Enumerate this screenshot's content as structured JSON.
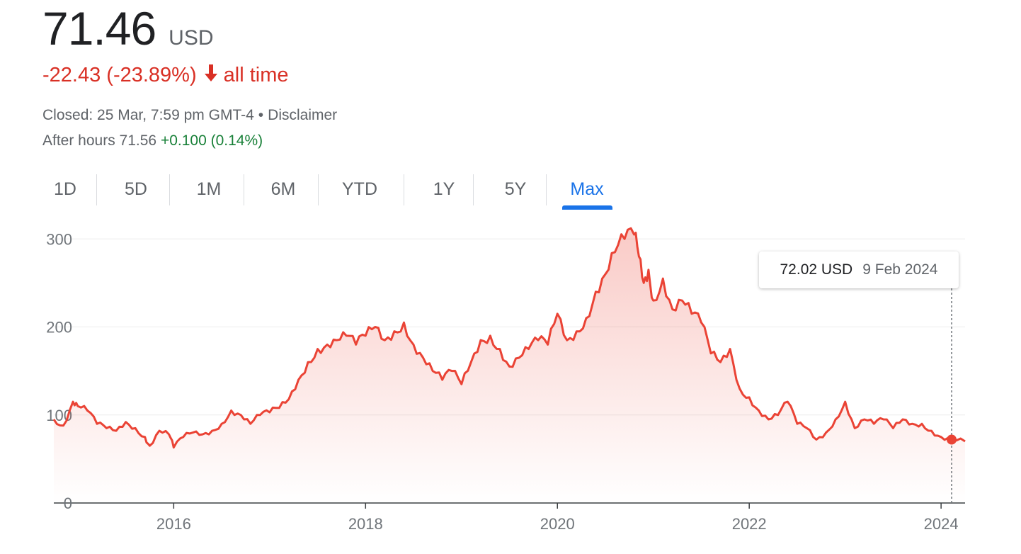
{
  "quote": {
    "price": "71.46",
    "currency": "USD",
    "change": "-22.43 (-23.89%)",
    "change_period": "all time",
    "closed_text": "Closed: 25 Mar, 7:59 pm GMT-4",
    "bullet": "•",
    "disclaimer": "Disclaimer",
    "after_hours_label": "After hours 71.56",
    "after_hours_change": "+0.100 (0.14%)",
    "negative_color": "#d93025",
    "positive_color": "#188038"
  },
  "tabs": [
    "1D",
    "5D",
    "1M",
    "6M",
    "YTD",
    "1Y",
    "5Y",
    "Max"
  ],
  "active_tab": "Max",
  "tooltip": {
    "value": "72.02 USD",
    "date": "9 Feb 2024"
  },
  "chart_data": {
    "type": "area",
    "line_color": "#ea4335",
    "grid": true,
    "xlim": [
      2014.75,
      2024.25
    ],
    "ylim": [
      0,
      330
    ],
    "x_ticks": [
      2016,
      2018,
      2020,
      2022,
      2024
    ],
    "x_tick_labels": [
      "2016",
      "2018",
      "2020",
      "2022",
      "2024"
    ],
    "y_ticks": [
      0,
      100,
      200,
      300
    ],
    "y_tick_labels": [
      "0",
      "100",
      "200",
      "300"
    ],
    "highlight": {
      "x": 2024.11,
      "y": 72.02
    },
    "series": [
      {
        "x": [
          2014.75,
          2014.85,
          2014.95,
          2015.0,
          2015.1,
          2015.2,
          2015.3,
          2015.4,
          2015.5,
          2015.6,
          2015.7,
          2015.75,
          2015.85,
          2015.95,
          2016.0,
          2016.1,
          2016.2,
          2016.3,
          2016.4,
          2016.5,
          2016.6,
          2016.7,
          2016.8,
          2016.9,
          2017.0,
          2017.1,
          2017.2,
          2017.3,
          2017.4,
          2017.5,
          2017.6,
          2017.7,
          2017.8,
          2017.9,
          2018.0,
          2018.1,
          2018.2,
          2018.3,
          2018.4,
          2018.5,
          2018.6,
          2018.7,
          2018.8,
          2018.9,
          2019.0,
          2019.1,
          2019.2,
          2019.3,
          2019.4,
          2019.5,
          2019.6,
          2019.7,
          2019.8,
          2019.9,
          2020.0,
          2020.1,
          2020.2,
          2020.3,
          2020.4,
          2020.5,
          2020.6,
          2020.7,
          2020.8,
          2020.85,
          2020.9,
          2020.95,
          2021.0,
          2021.1,
          2021.2,
          2021.3,
          2021.4,
          2021.5,
          2021.6,
          2021.7,
          2021.8,
          2021.9,
          2022.0,
          2022.1,
          2022.2,
          2022.3,
          2022.4,
          2022.5,
          2022.6,
          2022.7,
          2022.8,
          2022.9,
          2023.0,
          2023.1,
          2023.2,
          2023.3,
          2023.4,
          2023.5,
          2023.6,
          2023.7,
          2023.8,
          2023.9,
          2024.0,
          2024.11,
          2024.25
        ],
        "y": [
          95,
          88,
          115,
          110,
          105,
          90,
          85,
          82,
          92,
          85,
          75,
          65,
          82,
          78,
          63,
          75,
          80,
          78,
          82,
          90,
          105,
          100,
          90,
          100,
          103,
          108,
          118,
          140,
          160,
          175,
          180,
          185,
          190,
          180,
          190,
          200,
          185,
          195,
          205,
          180,
          165,
          150,
          140,
          150,
          135,
          160,
          185,
          190,
          175,
          155,
          165,
          175,
          185,
          180,
          215,
          185,
          195,
          210,
          240,
          260,
          285,
          300,
          305,
          280,
          250,
          265,
          230,
          255,
          220,
          230,
          215,
          205,
          170,
          160,
          175,
          130,
          120,
          105,
          95,
          100,
          115,
          90,
          85,
          72,
          80,
          95,
          115,
          85,
          95,
          90,
          95,
          85,
          95,
          90,
          90,
          82,
          75,
          72,
          70
        ]
      }
    ]
  }
}
